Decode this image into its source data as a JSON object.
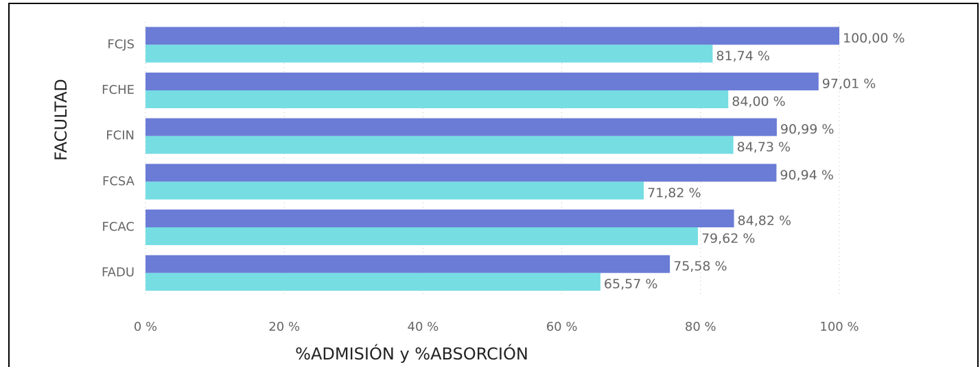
{
  "chart_data": {
    "type": "bar",
    "orientation": "horizontal",
    "xlabel": "%ADMISIÓN y %ABSORCIÓN",
    "ylabel": "FACULTAD",
    "categories": [
      "FCJS",
      "FCHE",
      "FCIN",
      "FCSA",
      "FCAC",
      "FADU"
    ],
    "series": [
      {
        "color": "#6b7cd6",
        "values": [
          100.0,
          97.01,
          90.99,
          90.94,
          84.82,
          75.58
        ],
        "value_labels": [
          "100,00 %",
          "97,01 %",
          "90,99 %",
          "90,94 %",
          "84,82 %",
          "75,58 %"
        ]
      },
      {
        "color": "#76dde3",
        "values": [
          81.74,
          84.0,
          84.73,
          71.82,
          79.62,
          65.57
        ],
        "value_labels": [
          "81,74 %",
          "84,00 %",
          "84,73 %",
          "71,82 %",
          "79,62 %",
          "65,57 %"
        ]
      }
    ],
    "xlim": [
      0,
      100
    ],
    "xticks": [
      {
        "value": 0,
        "label": "0 %"
      },
      {
        "value": 20,
        "label": "20 %"
      },
      {
        "value": 40,
        "label": "40 %"
      },
      {
        "value": 60,
        "label": "60 %"
      },
      {
        "value": 80,
        "label": "80 %"
      },
      {
        "value": 100,
        "label": "100 %"
      }
    ],
    "grid": true
  }
}
